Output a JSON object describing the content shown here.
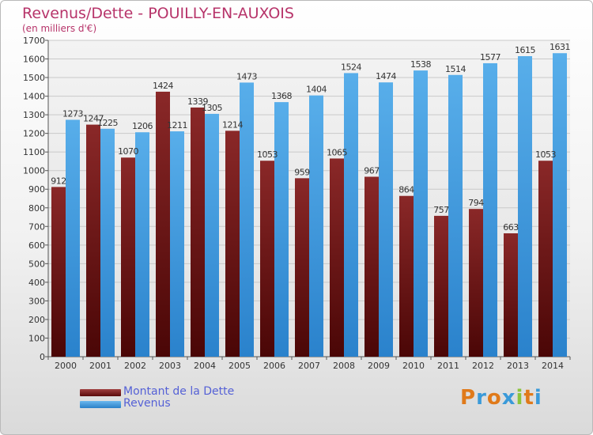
{
  "title": "Revenus/Dette - POUILLY-EN-AUXOIS",
  "subtitle": "(en milliers d'€)",
  "logo": "Proxiti",
  "colors": {
    "dette": "#7a1010",
    "revenus": "#3a98e0",
    "title": "#b7346a",
    "legend_text": "#5561d6"
  },
  "chart_data": {
    "type": "bar",
    "title": "Revenus/Dette - POUILLY-EN-AUXOIS",
    "subtitle": "(en milliers d'€)",
    "categories": [
      "2000",
      "2001",
      "2002",
      "2003",
      "2004",
      "2005",
      "2006",
      "2007",
      "2008",
      "2009",
      "2010",
      "2011",
      "2012",
      "2013",
      "2014"
    ],
    "series": [
      {
        "name": "Montant de la Dette",
        "values": [
          912,
          1247,
          1070,
          1424,
          1339,
          1214,
          1053,
          959,
          1065,
          967,
          864,
          757,
          794,
          663,
          1053
        ],
        "labels": [
          "912",
          "1247",
          "1070",
          "1424",
          "1339",
          "1214",
          "1053",
          "959",
          "1065",
          "967",
          "864",
          "757",
          "794",
          "663",
          "1053"
        ]
      },
      {
        "name": "Revenus",
        "values": [
          1273,
          1225,
          1206,
          1211,
          1305,
          1473,
          1368,
          1404,
          1524,
          1474,
          1538,
          1514,
          1577,
          1615,
          1631
        ],
        "labels": [
          "1273",
          "1225",
          "1206",
          "1211",
          "1305",
          "1473",
          "1368",
          "1404",
          "1524",
          "1474",
          "1538",
          "1514",
          "1577",
          "1615",
          "1631"
        ]
      }
    ],
    "ylim": [
      0,
      1700
    ],
    "yticks": [
      "0",
      "100",
      "200",
      "300",
      "400",
      "500",
      "600",
      "700",
      "800",
      "900",
      "1000",
      "1100",
      "1200",
      "1300",
      "1400",
      "1500",
      "1600",
      "1700"
    ],
    "grid": true,
    "legend_position": "bottom-left"
  }
}
